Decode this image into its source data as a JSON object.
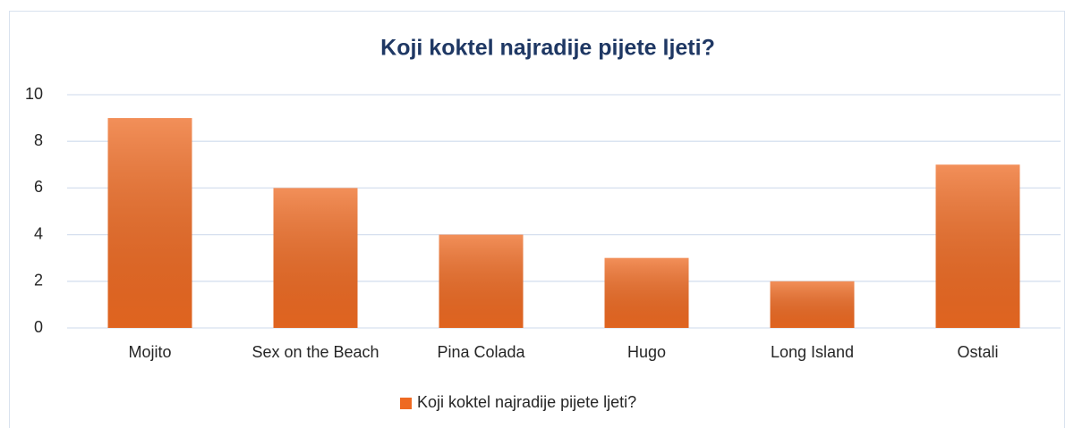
{
  "chart_data": {
    "type": "bar",
    "title": "Koji koktel najradije pijete ljeti?",
    "categories": [
      "Mojito",
      "Sex on the Beach",
      "Pina Colada",
      "Hugo",
      "Long Island",
      "Ostali"
    ],
    "series": [
      {
        "name": "Koji koktel najradije pijete ljeti?",
        "color": "#ee6a22",
        "values": [
          9,
          6,
          4,
          3,
          2,
          7
        ]
      }
    ],
    "ylim": [
      0,
      10
    ],
    "yticks": [
      0,
      2,
      4,
      6,
      8,
      10
    ],
    "grid": true,
    "legend": "bottom"
  }
}
